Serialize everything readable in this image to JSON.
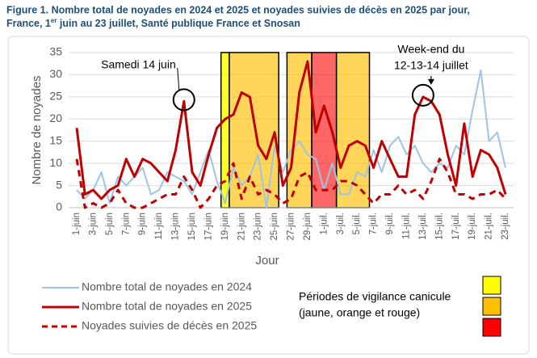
{
  "chart_data": {
    "type": "line",
    "title": [
      "Figure 1. Nombre total de noyades en 2024 et 2025 et noyades suivies de décès en 2025 par jour,",
      "France, 1",
      "er",
      " juin au 23 juillet, Santé publique France et Snosan"
    ],
    "ylabel": "Nombre de noyades",
    "xlabel": "Jour",
    "categories": [
      "1-juin",
      null,
      "3-juin",
      null,
      "5-juin",
      null,
      "7-juin",
      null,
      "9-juin",
      null,
      "11-juin",
      null,
      "13-juin",
      null,
      "15-juin",
      null,
      "17-juin",
      null,
      "19-juin",
      null,
      "21-juin",
      null,
      "23-juin",
      null,
      "25-juin",
      null,
      "27-juin",
      null,
      "29-juin",
      null,
      "1-juil.",
      null,
      "3-juil.",
      null,
      "5-juil.",
      null,
      "7-juil.",
      null,
      "9-juil.",
      null,
      "11-juil.",
      null,
      "13-juil.",
      null,
      "15-juil.",
      null,
      "17-juil.",
      null,
      "19-juil.",
      null,
      "21-juil.",
      null,
      "23-juil."
    ],
    "series": [
      {
        "name": "Nombre total de noyades en 2024",
        "color": "#9dc3e6",
        "dash": false,
        "width": 2,
        "values": [
          4,
          2,
          4,
          8,
          1,
          7,
          5,
          7,
          9,
          3,
          4,
          8,
          7,
          6,
          3,
          8,
          13,
          6,
          1,
          9,
          5,
          7,
          12,
          0,
          14,
          8,
          13,
          15,
          12,
          11,
          4,
          10,
          3,
          3,
          8,
          7,
          13,
          8,
          14,
          16,
          12,
          14,
          10,
          8,
          10,
          9,
          14,
          12,
          22,
          31,
          15,
          17,
          9
        ]
      },
      {
        "name": "Nombre total de noyades en 2025",
        "color": "#c00000",
        "dash": false,
        "width": 3,
        "values": [
          18,
          3,
          4,
          2,
          4,
          5,
          11,
          7,
          11,
          10,
          8,
          6,
          13,
          24,
          8,
          5,
          12,
          18,
          20,
          21,
          26,
          25,
          14,
          11,
          17,
          5,
          9,
          26,
          33,
          17,
          23,
          17,
          9,
          14,
          15,
          14,
          9,
          15,
          11,
          7,
          7,
          21,
          25,
          24,
          21,
          12,
          5,
          19,
          7,
          13,
          12,
          9,
          3
        ]
      },
      {
        "name": "Noyades suivies de décès en 2025",
        "color": "#c00000",
        "dash": true,
        "width": 3,
        "values": [
          11,
          0,
          1,
          0,
          1,
          4,
          1,
          0,
          0,
          1,
          2,
          3,
          3,
          7,
          4,
          0,
          2,
          5,
          6,
          10,
          2,
          7,
          3,
          4,
          3,
          1,
          2,
          7,
          8,
          4,
          4,
          4,
          6,
          6,
          5,
          3,
          1,
          3,
          3,
          5,
          3,
          4,
          2,
          6,
          11,
          8,
          3,
          3,
          2,
          3,
          3,
          4,
          2
        ]
      }
    ],
    "ylim": [
      0,
      35
    ],
    "yticks": [
      0,
      5,
      10,
      15,
      20,
      25,
      30,
      35
    ],
    "grid": true,
    "vigilance_periods": [
      {
        "from": 18,
        "to": 18,
        "color": "#ffff00"
      },
      {
        "from": 19,
        "to": 24,
        "color": "#ffc000"
      },
      {
        "from": 26,
        "to": 28,
        "color": "#ffc000"
      },
      {
        "from": 29,
        "to": 31,
        "color": "#ff0000"
      },
      {
        "from": 32,
        "to": 35,
        "color": "#ffc000"
      }
    ],
    "vigilance_legend": [
      "Périodes de vigilance canicule",
      "(jaune, orange et rouge)"
    ],
    "vigilance_colors": [
      "#ffff00",
      "#ffc000",
      "#ff0000"
    ],
    "annotations": [
      {
        "text": [
          "Samedi 14 juin"
        ],
        "index": 13
      },
      {
        "text": [
          "Week-end du",
          "12-13-14 juillet"
        ],
        "index": 42
      }
    ]
  }
}
